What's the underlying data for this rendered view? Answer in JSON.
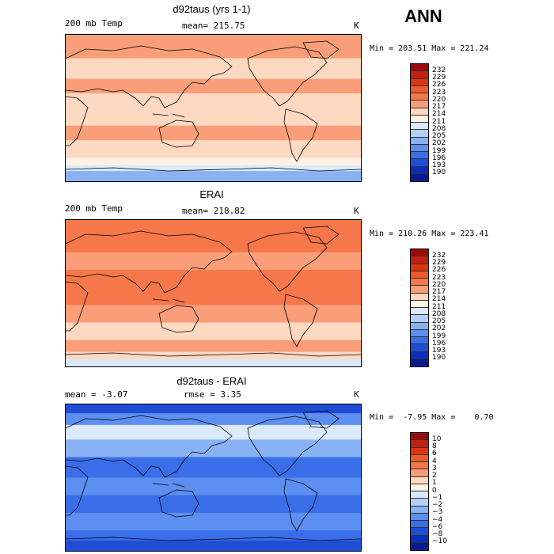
{
  "season": "ANN",
  "chart_data": [
    {
      "type": "heatmap",
      "title": "d92taus (yrs 1-1)",
      "variable": "200 mb Temp",
      "units": "K",
      "stat_left": "mean= 215.75",
      "stat_right": "",
      "minmax": "Min = 203.51 Max = 221.24",
      "min": 203.51,
      "max": 221.24,
      "levels": [
        "232",
        "229",
        "226",
        "223",
        "220",
        "217",
        "214",
        "211",
        "208",
        "205",
        "202",
        "199",
        "196",
        "193",
        "190"
      ],
      "colors": [
        "#9b0a0a",
        "#c31e0e",
        "#dd3410",
        "#ee5a2c",
        "#f6784a",
        "#f99e78",
        "#fdd9c2",
        "#fff2e3",
        "#dbe9fa",
        "#b4d0f7",
        "#88b2f3",
        "#5c8ff0",
        "#3a6ee8",
        "#1f4dd6",
        "#0a2dbb",
        "#0a1a90"
      ],
      "zones": [
        {
          "band": [
            0.0,
            0.16
          ],
          "color": "#f99e78"
        },
        {
          "band": [
            0.16,
            0.3
          ],
          "color": "#fdd9c2"
        },
        {
          "band": [
            0.3,
            0.4
          ],
          "color": "#f99e78"
        },
        {
          "band": [
            0.4,
            0.62
          ],
          "color": "#fdd9c2"
        },
        {
          "band": [
            0.62,
            0.72
          ],
          "color": "#f99e78"
        },
        {
          "band": [
            0.72,
            0.84
          ],
          "color": "#fdd9c2"
        },
        {
          "band": [
            0.84,
            0.89
          ],
          "color": "#fff2e3"
        },
        {
          "band": [
            0.89,
            0.93
          ],
          "color": "#dbe9fa"
        },
        {
          "band": [
            0.93,
            1.0
          ],
          "color": "#88b2f3"
        }
      ]
    },
    {
      "type": "heatmap",
      "title": "ERAI",
      "variable": "200 mb Temp",
      "units": "K",
      "stat_left": "mean= 218.82",
      "stat_right": "",
      "minmax": "Min = 210.26 Max = 223.41",
      "min": 210.26,
      "max": 223.41,
      "levels": [
        "232",
        "229",
        "226",
        "223",
        "220",
        "217",
        "214",
        "211",
        "208",
        "205",
        "202",
        "199",
        "196",
        "193",
        "190"
      ],
      "colors": [
        "#9b0a0a",
        "#c31e0e",
        "#dd3410",
        "#ee5a2c",
        "#f6784a",
        "#f99e78",
        "#fdd9c2",
        "#fff2e3",
        "#dbe9fa",
        "#b4d0f7",
        "#88b2f3",
        "#5c8ff0",
        "#3a6ee8",
        "#1f4dd6",
        "#0a2dbb",
        "#0a1a90"
      ],
      "zones": [
        {
          "band": [
            0.0,
            0.22
          ],
          "color": "#f6784a"
        },
        {
          "band": [
            0.22,
            0.34
          ],
          "color": "#f99e78"
        },
        {
          "band": [
            0.34,
            0.58
          ],
          "color": "#f6784a"
        },
        {
          "band": [
            0.58,
            0.7
          ],
          "color": "#f99e78"
        },
        {
          "band": [
            0.7,
            0.82
          ],
          "color": "#fdd9c2"
        },
        {
          "band": [
            0.82,
            0.9
          ],
          "color": "#f99e78"
        },
        {
          "band": [
            0.9,
            0.95
          ],
          "color": "#fdd9c2"
        },
        {
          "band": [
            0.95,
            1.0
          ],
          "color": "#dbe9fa"
        }
      ]
    },
    {
      "type": "heatmap",
      "title": "d92taus - ERAI",
      "variable": "",
      "units": "K",
      "stat_left": "mean =   -3.07",
      "stat_right": "rmse =    3.35",
      "minmax": "Min =  -7.95 Max =    0.70",
      "min": -7.95,
      "max": 0.7,
      "levels": [
        "10",
        "8",
        "6",
        "4",
        "3",
        "2",
        "1",
        "0",
        "−1",
        "−2",
        "−3",
        "−4",
        "−6",
        "−8",
        "−10"
      ],
      "colors": [
        "#9b0a0a",
        "#c31e0e",
        "#dd3410",
        "#ee5a2c",
        "#f6784a",
        "#f99e78",
        "#fdd9c2",
        "#fff2e3",
        "#dbe9fa",
        "#b4d0f7",
        "#88b2f3",
        "#5c8ff0",
        "#3a6ee8",
        "#1f4dd6",
        "#0a2dbb",
        "#0a1a90"
      ],
      "zones": [
        {
          "band": [
            0.0,
            0.06
          ],
          "color": "#1f4dd6"
        },
        {
          "band": [
            0.06,
            0.14
          ],
          "color": "#5c8ff0"
        },
        {
          "band": [
            0.14,
            0.24
          ],
          "color": "#dbe9fa"
        },
        {
          "band": [
            0.24,
            0.36
          ],
          "color": "#88b2f3"
        },
        {
          "band": [
            0.36,
            0.5
          ],
          "color": "#3a6ee8"
        },
        {
          "band": [
            0.5,
            0.62
          ],
          "color": "#5c8ff0"
        },
        {
          "band": [
            0.62,
            0.74
          ],
          "color": "#3a6ee8"
        },
        {
          "band": [
            0.74,
            0.86
          ],
          "color": "#5c8ff0"
        },
        {
          "band": [
            0.86,
            0.93
          ],
          "color": "#3a6ee8"
        },
        {
          "band": [
            0.93,
            1.0
          ],
          "color": "#1f4dd6"
        }
      ]
    }
  ]
}
